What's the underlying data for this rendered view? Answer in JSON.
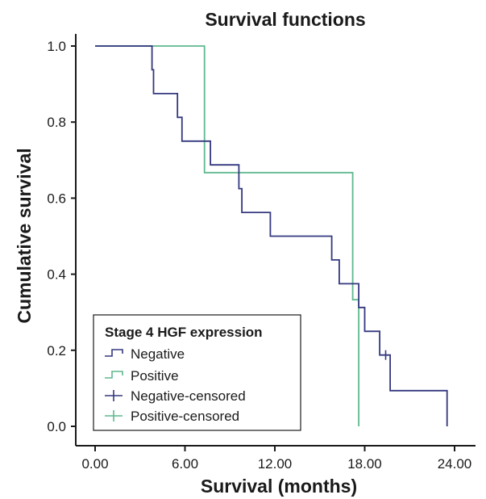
{
  "chart_data": {
    "type": "line",
    "title": "Survival functions",
    "xlabel": "Survival (months)",
    "ylabel": "Cumulative survival",
    "xlim": [
      0,
      24
    ],
    "ylim": [
      0,
      1.0
    ],
    "xticks": [
      "0.00",
      "6.00",
      "12.00",
      "18.00",
      "24.00"
    ],
    "yticks": [
      "0.0",
      "0.2",
      "0.4",
      "0.6",
      "0.8",
      "1.0"
    ],
    "xtick_values": [
      0,
      6,
      12,
      18,
      24
    ],
    "ytick_values": [
      0,
      0.2,
      0.4,
      0.6,
      0.8,
      1.0
    ],
    "grid": false,
    "legend_position": "bottom-left",
    "legend_title": "Stage 4 HGF expression",
    "colors": {
      "negative": "#34387f",
      "positive": "#5fb88f"
    },
    "series": [
      {
        "name": "Negative",
        "color": "#34387f",
        "step_points": [
          [
            0,
            1.0
          ],
          [
            3.8,
            1.0
          ],
          [
            3.8,
            0.9375
          ],
          [
            3.9,
            0.9375
          ],
          [
            3.9,
            0.875
          ],
          [
            5.5,
            0.875
          ],
          [
            5.5,
            0.8125
          ],
          [
            5.8,
            0.8125
          ],
          [
            5.8,
            0.75
          ],
          [
            7.7,
            0.75
          ],
          [
            7.7,
            0.6875
          ],
          [
            9.6,
            0.6875
          ],
          [
            9.6,
            0.625
          ],
          [
            9.8,
            0.625
          ],
          [
            9.8,
            0.5625
          ],
          [
            11.7,
            0.5625
          ],
          [
            11.7,
            0.5
          ],
          [
            15.8,
            0.5
          ],
          [
            15.8,
            0.4375
          ],
          [
            16.3,
            0.4375
          ],
          [
            16.3,
            0.375
          ],
          [
            17.6,
            0.375
          ],
          [
            17.6,
            0.3125
          ],
          [
            18.0,
            0.3125
          ],
          [
            18.0,
            0.25
          ],
          [
            19.0,
            0.25
          ],
          [
            19.0,
            0.1875
          ],
          [
            19.7,
            0.1875
          ],
          [
            19.7,
            0.09375
          ],
          [
            23.5,
            0.09375
          ],
          [
            23.5,
            0.0
          ]
        ]
      },
      {
        "name": "Positive",
        "color": "#5fb88f",
        "step_points": [
          [
            0,
            1.0
          ],
          [
            7.3,
            1.0
          ],
          [
            7.3,
            0.667
          ],
          [
            17.2,
            0.667
          ],
          [
            17.2,
            0.333
          ],
          [
            17.6,
            0.333
          ],
          [
            17.6,
            0.0
          ]
        ]
      },
      {
        "name": "Negative-censored",
        "color": "#34387f",
        "points": [
          [
            19.4,
            0.1875
          ]
        ]
      },
      {
        "name": "Positive-censored",
        "color": "#5fb88f",
        "points": []
      }
    ]
  }
}
